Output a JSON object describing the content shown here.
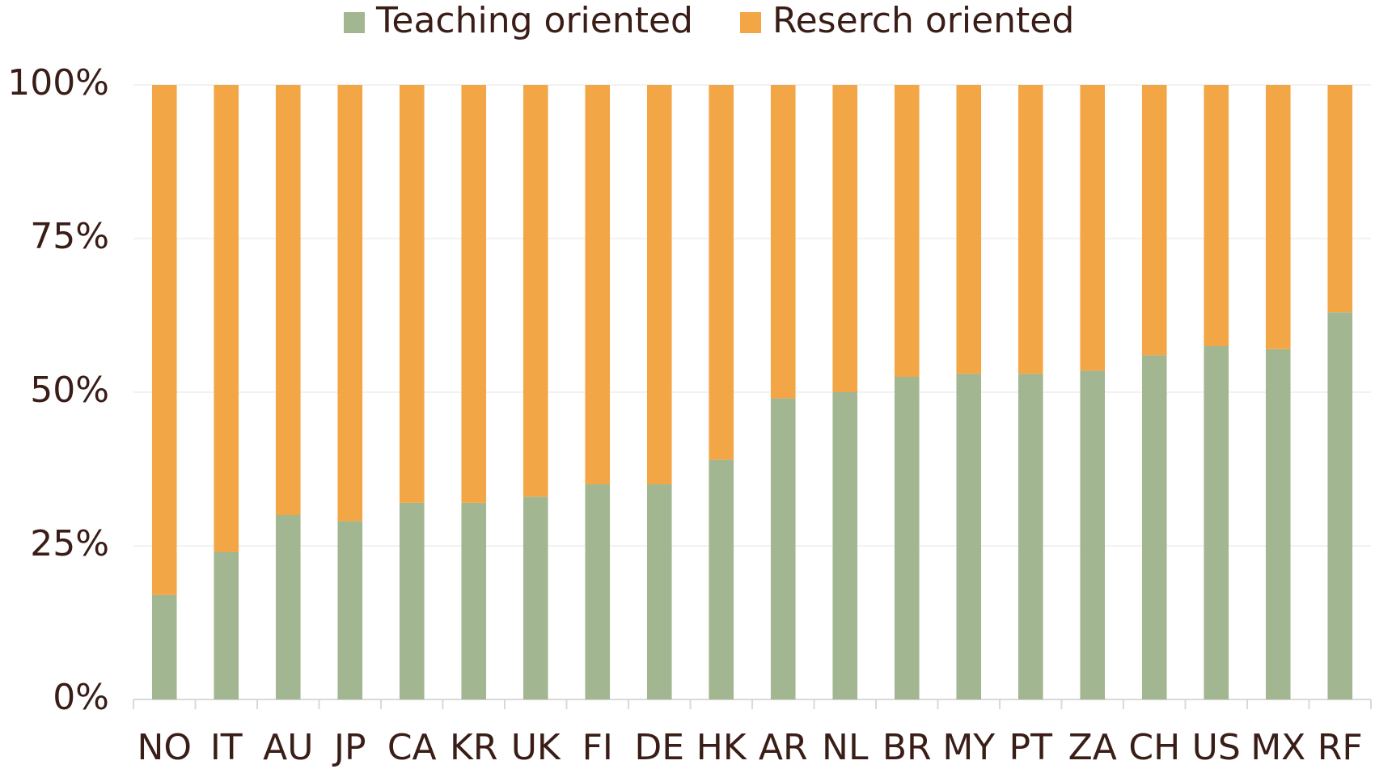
{
  "chart_data": {
    "type": "stacked_bar",
    "categories": [
      "NO",
      "IT",
      "AU",
      "JP",
      "CA",
      "KR",
      "UK",
      "FI",
      "DE",
      "HK",
      "AR",
      "NL",
      "BR",
      "MY",
      "PT",
      "ZA",
      "CH",
      "US",
      "MX",
      "RF"
    ],
    "series": [
      {
        "name": "Teaching oriented",
        "color": "#a3b692",
        "values": [
          17,
          24,
          30,
          29,
          32,
          32,
          33,
          35,
          35,
          39,
          49,
          50,
          52.5,
          53,
          53,
          53.5,
          56,
          57.5,
          57,
          63
        ]
      },
      {
        "name": "Reserch oriented",
        "color": "#f3a646",
        "values": [
          83,
          76,
          70,
          71,
          68,
          68,
          67,
          65,
          65,
          61,
          51,
          50,
          47.5,
          47,
          47,
          46.5,
          44,
          42.5,
          43,
          37
        ]
      }
    ],
    "ylim": [
      0,
      100
    ],
    "yticks": [
      {
        "value": 0,
        "label": "0%"
      },
      {
        "value": 25,
        "label": "25%"
      },
      {
        "value": 50,
        "label": "50%"
      },
      {
        "value": 75,
        "label": "75%"
      },
      {
        "value": 100,
        "label": "100%"
      }
    ],
    "grid": true,
    "legend": "top"
  }
}
